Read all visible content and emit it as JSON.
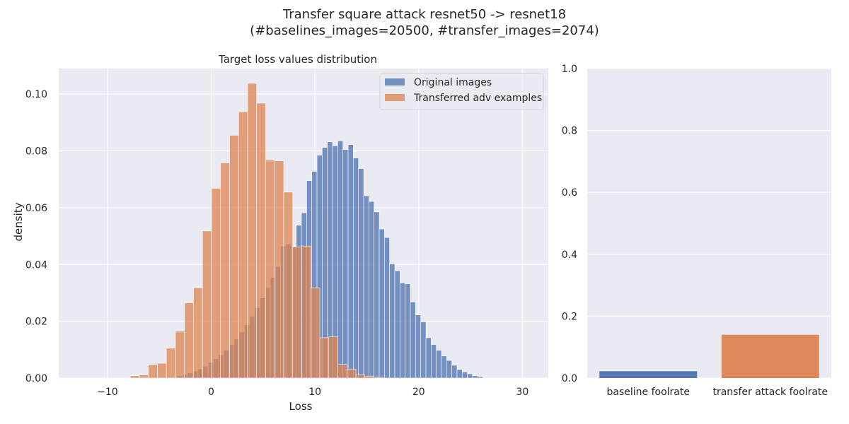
{
  "figure": {
    "suptitle_line1": "Transfer square attack resnet50 -> resnet18",
    "suptitle_line2": "(#baselines_images=20500, #transfer_images=2074)"
  },
  "colors": {
    "blue": "#4C72B0",
    "orange": "#DD8452",
    "axes_bg": "#EAEAF2",
    "grid": "#FFFFFF"
  },
  "chart_data": [
    {
      "type": "histogram",
      "title": "Target loss values distribution",
      "xlabel": "Loss",
      "ylabel": "density",
      "xlim": [
        -14.7,
        32.5
      ],
      "ylim": [
        0,
        0.109
      ],
      "xticks": [
        -10,
        0,
        10,
        20,
        30
      ],
      "xtick_labels": [
        "−10",
        "0",
        "10",
        "20",
        "30"
      ],
      "yticks": [
        0,
        0.02,
        0.04,
        0.06,
        0.08,
        0.1
      ],
      "ytick_labels": [
        "0.00",
        "0.02",
        "0.04",
        "0.06",
        "0.08",
        "0.10"
      ],
      "grid": true,
      "legend_position": "upper right",
      "series": [
        {
          "name": "Original images",
          "color": "#4C72B0",
          "alpha": 0.75,
          "bin_start": -3.3,
          "bin_width": 0.5,
          "values": [
            0.0008,
            0.0012,
            0.0018,
            0.0025,
            0.0032,
            0.0042,
            0.0055,
            0.0068,
            0.0082,
            0.0098,
            0.0118,
            0.0138,
            0.0162,
            0.0188,
            0.0218,
            0.0248,
            0.0282,
            0.0318,
            0.0355,
            0.0392,
            0.0465,
            0.0472,
            0.0462,
            0.0538,
            0.0582,
            0.0695,
            0.0728,
            0.0785,
            0.0812,
            0.0832,
            0.0818,
            0.0835,
            0.0805,
            0.0822,
            0.0775,
            0.0738,
            0.0642,
            0.0622,
            0.0585,
            0.0525,
            0.0495,
            0.0402,
            0.0378,
            0.0335,
            0.0332,
            0.0268,
            0.0222,
            0.0198,
            0.0142,
            0.0118,
            0.0098,
            0.0078,
            0.0062,
            0.0045,
            0.003,
            0.0022,
            0.0015,
            0.0008,
            0.0005,
            0.0002
          ]
        },
        {
          "name": "Transferred adv examples",
          "color": "#DD8452",
          "alpha": 0.75,
          "bin_start": -7.8,
          "bin_width": 0.87,
          "values": [
            0.0008,
            0.0011,
            0.0048,
            0.0052,
            0.0105,
            0.0165,
            0.0265,
            0.0318,
            0.0518,
            0.0668,
            0.0758,
            0.0855,
            0.0938,
            0.1038,
            0.0968,
            0.0768,
            0.0765,
            0.0655,
            0.0462,
            0.0465,
            0.0318,
            0.0142,
            0.0145,
            0.0048,
            0.0032,
            0.0011,
            0.0007,
            0.0003
          ]
        }
      ]
    },
    {
      "type": "bar",
      "categories": [
        "baseline foolrate",
        "transfer attack foolrate"
      ],
      "values": [
        0.022,
        0.14
      ],
      "colors": [
        "#4C72B0",
        "#DD8452"
      ],
      "ylim": [
        0,
        1.0
      ],
      "yticks": [
        0,
        0.2,
        0.4,
        0.6,
        0.8,
        1.0
      ],
      "ytick_labels": [
        "0.0",
        "0.2",
        "0.4",
        "0.6",
        "0.8",
        "1.0"
      ],
      "grid": true
    }
  ]
}
